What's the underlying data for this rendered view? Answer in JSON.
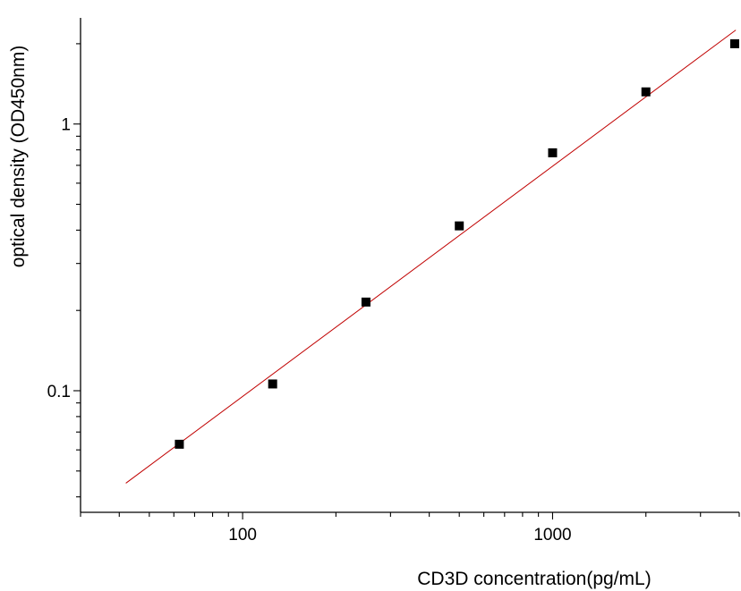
{
  "chart_data": {
    "type": "scatter",
    "title": "",
    "xlabel": "CD3D concentration(pg/mL)",
    "ylabel": "optical density (OD450nm)",
    "xscale": "log",
    "yscale": "log",
    "xlim": [
      30,
      4000
    ],
    "ylim": [
      0.035,
      2.5
    ],
    "grid": false,
    "x_ticks": [
      {
        "value": 100,
        "label": "100"
      },
      {
        "value": 1000,
        "label": "1000"
      }
    ],
    "y_ticks": [
      {
        "value": 0.1,
        "label": "0.1"
      },
      {
        "value": 1,
        "label": "1"
      }
    ],
    "series": [
      {
        "marker": "square",
        "color": "#000000",
        "points": [
          {
            "x": 62.5,
            "y": 0.063
          },
          {
            "x": 125,
            "y": 0.106
          },
          {
            "x": 250,
            "y": 0.215
          },
          {
            "x": 500,
            "y": 0.415
          },
          {
            "x": 1000,
            "y": 0.78
          },
          {
            "x": 2000,
            "y": 1.32
          },
          {
            "x": 4000,
            "y": 2.0
          }
        ]
      }
    ],
    "fit_line": {
      "color": "#c00000",
      "points": [
        {
          "x": 42,
          "y": 0.045
        },
        {
          "x": 3900,
          "y": 2.25
        }
      ]
    }
  }
}
